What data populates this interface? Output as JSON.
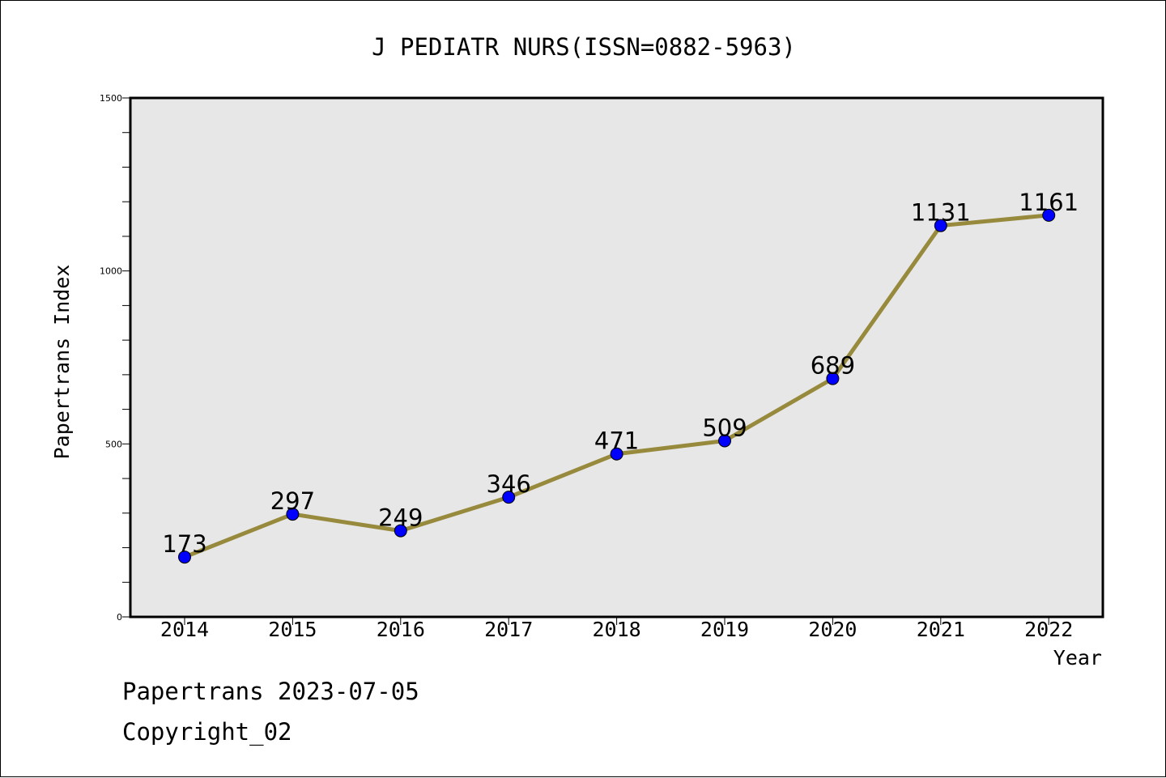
{
  "chart_data": {
    "type": "line",
    "title": "J PEDIATR NURS(ISSN=0882-5963)",
    "xlabel": "Year",
    "ylabel": "Papertrans Index",
    "categories": [
      "2014",
      "2015",
      "2016",
      "2017",
      "2018",
      "2019",
      "2020",
      "2021",
      "2022"
    ],
    "series": [
      {
        "values": [
          173,
          297,
          249,
          346,
          471,
          509,
          689,
          1131,
          1161
        ]
      }
    ],
    "ylim": [
      0,
      1500
    ],
    "yticks": [
      "0",
      "500",
      "1000",
      "1500"
    ],
    "grid": false,
    "legend": "none",
    "colors": {
      "line": "#978a3c",
      "marker": "#0000ff",
      "plot_background": "#e7e7e7"
    }
  },
  "footer": {
    "line1": "Papertrans 2023-07-05",
    "line2": "Copyright_02"
  }
}
